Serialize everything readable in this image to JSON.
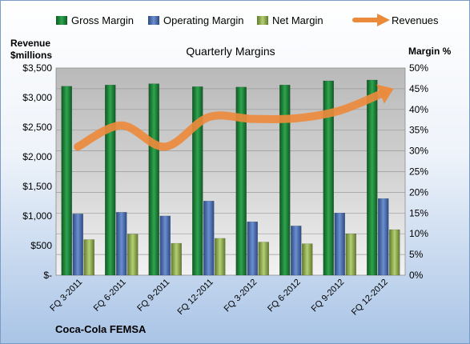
{
  "chart_data": {
    "type": "bar",
    "title": "Quarterly Margins",
    "company": "Coca-Cola FEMSA",
    "y_left_label": [
      "Revenue",
      "$millions"
    ],
    "y_right_label": "Margin %",
    "y_left_ticks": [
      "$-",
      "$500",
      "$1,000",
      "$1,500",
      "$2,000",
      "$2,500",
      "$3,000",
      "$3,500"
    ],
    "y_right_ticks": [
      "0%",
      "5%",
      "10%",
      "15%",
      "20%",
      "25%",
      "30%",
      "35%",
      "40%",
      "45%",
      "50%"
    ],
    "y_left_range": [
      0,
      3500
    ],
    "y_right_range": [
      0,
      50
    ],
    "categories": [
      "FQ 3-2011",
      "FQ 6-2011",
      "FQ 9-2011",
      "FQ 12-2011",
      "FQ 3-2012",
      "FQ 6-2012",
      "FQ 9-2012",
      "FQ 12-2012"
    ],
    "series": [
      {
        "name": "Gross Margin",
        "axis": "right",
        "color": "#1f8a3c",
        "values": [
          45.6,
          45.9,
          46.2,
          45.5,
          45.4,
          45.9,
          46.9,
          47.1
        ]
      },
      {
        "name": "Operating Margin",
        "axis": "right",
        "color": "#4a6fb5",
        "values": [
          14.8,
          15.2,
          14.3,
          17.9,
          12.9,
          11.9,
          15.0,
          18.5
        ]
      },
      {
        "name": "Net Margin",
        "axis": "right",
        "color": "#9bbb59",
        "values": [
          8.6,
          9.9,
          7.7,
          8.9,
          8.0,
          7.6,
          10.0,
          11.0
        ]
      }
    ],
    "line_series": {
      "name": "Revenues",
      "axis": "left",
      "color": "#ec8a3c",
      "values": [
        2170,
        2530,
        2170,
        2670,
        2640,
        2650,
        2780,
        3080
      ]
    },
    "legend_position": "top",
    "grid": true
  }
}
